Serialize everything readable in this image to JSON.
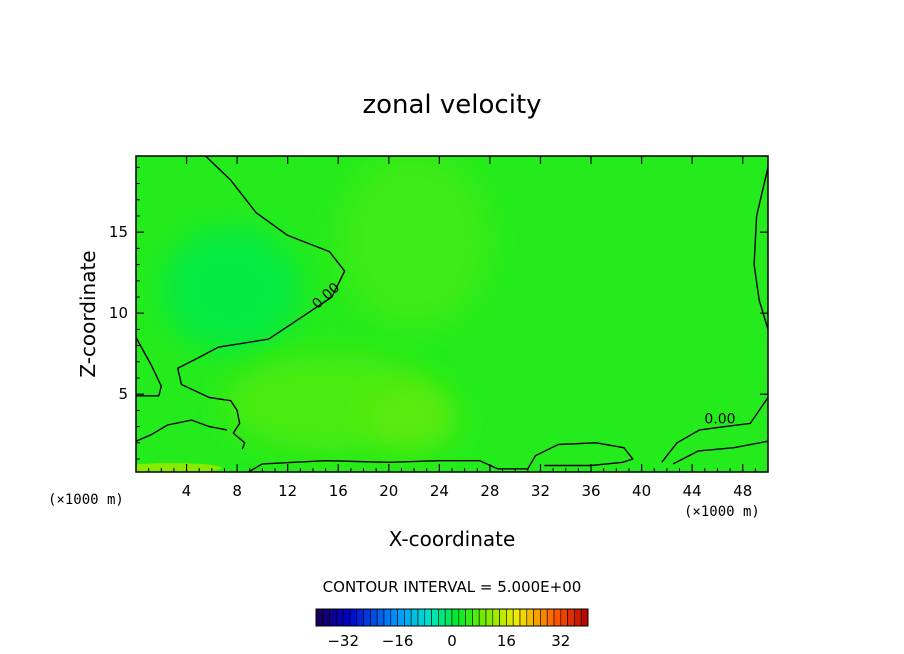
{
  "chart_data": {
    "type": "heatmap",
    "title": "zonal velocity",
    "xlabel": "X-coordinate",
    "ylabel": "Z-coordinate",
    "x_unit_label": "(×1000 m)",
    "x_unit_label_right": "(×1000 m)",
    "xlim": [
      0,
      50
    ],
    "ylim": [
      0.2,
      19.7
    ],
    "x_ticks": [
      4,
      8,
      12,
      16,
      20,
      24,
      28,
      32,
      36,
      40,
      44,
      48
    ],
    "y_ticks": [
      5,
      10,
      15
    ],
    "contour_interval_text": "CONTOUR INTERVAL = 5.000E+00",
    "contour_labels": [
      {
        "text": "0.00",
        "x": 15,
        "y": 11.1
      },
      {
        "text": "0.00",
        "x": 46.2,
        "y": 3.5
      }
    ],
    "zero_contours": [
      [
        [
          5.5,
          19.7
        ],
        [
          7.5,
          18.2
        ],
        [
          9.5,
          16.2
        ],
        [
          12,
          14.8
        ],
        [
          15.3,
          13.8
        ],
        [
          16.5,
          12.6
        ],
        [
          15.5,
          11.0
        ],
        [
          13.2,
          9.8
        ],
        [
          10.5,
          8.4
        ],
        [
          6.5,
          7.9
        ],
        [
          4.8,
          7.2
        ],
        [
          3.3,
          6.6
        ],
        [
          3.6,
          5.6
        ],
        [
          5.8,
          4.8
        ],
        [
          7.5,
          4.6
        ],
        [
          8.0,
          4.0
        ],
        [
          8.2,
          3.2
        ],
        [
          7.7,
          2.6
        ],
        [
          8.6,
          2.0
        ],
        [
          8.4,
          1.6
        ]
      ],
      [
        [
          0,
          2.1
        ],
        [
          1.2,
          2.5
        ],
        [
          2.5,
          3.1
        ],
        [
          4.4,
          3.4
        ],
        [
          5.8,
          3.0
        ],
        [
          7.2,
          2.8
        ]
      ],
      [
        [
          0,
          8.5
        ],
        [
          1.2,
          6.8
        ],
        [
          2.0,
          5.5
        ],
        [
          1.8,
          4.9
        ],
        [
          0,
          4.9
        ]
      ],
      [
        [
          8.9,
          0.2
        ],
        [
          10,
          0.7
        ],
        [
          15,
          0.9
        ],
        [
          20,
          0.8
        ],
        [
          24,
          0.9
        ],
        [
          27.2,
          0.9
        ],
        [
          28.6,
          0.4
        ],
        [
          31,
          0.4
        ],
        [
          31.6,
          1.2
        ],
        [
          33.4,
          1.9
        ],
        [
          36.4,
          2.0
        ],
        [
          38.6,
          1.7
        ],
        [
          39.3,
          1.0
        ],
        [
          38.5,
          0.8
        ],
        [
          36,
          0.6
        ],
        [
          34,
          0.6
        ],
        [
          32.3,
          0.6
        ]
      ],
      [
        [
          41.6,
          0.8
        ],
        [
          42.8,
          2.0
        ],
        [
          44.6,
          2.8
        ],
        [
          46.6,
          3.0
        ],
        [
          48.6,
          3.2
        ],
        [
          50,
          4.8
        ]
      ],
      [
        [
          42.5,
          0.7
        ],
        [
          44.5,
          1.5
        ],
        [
          47.3,
          1.7
        ],
        [
          50,
          2.1
        ]
      ],
      [
        [
          50,
          19.0
        ],
        [
          49.1,
          16.0
        ],
        [
          48.9,
          13.0
        ],
        [
          49.3,
          10.8
        ],
        [
          50,
          9.0
        ]
      ]
    ],
    "background_value": 4,
    "anomalies": [
      {
        "x": 7.5,
        "y": 11.5,
        "rx": 5.5,
        "ry": 3.8,
        "value": 0
      },
      {
        "x": 15.5,
        "y": 4.5,
        "rx": 8.5,
        "ry": 3.0,
        "value": 7
      },
      {
        "x": 22,
        "y": 3.5,
        "rx": 3.5,
        "ry": 2.0,
        "value": 8
      },
      {
        "x": 22,
        "y": 14.5,
        "rx": 6.0,
        "ry": 5.5,
        "value": 6
      },
      {
        "x": 2.8,
        "y": 0.45,
        "rx": 4.0,
        "ry": 0.3,
        "value": 12
      }
    ],
    "colorbar": {
      "min": -40,
      "max": 40,
      "ticks": [
        -32,
        -16,
        0,
        16,
        32
      ],
      "interval": 5
    }
  }
}
